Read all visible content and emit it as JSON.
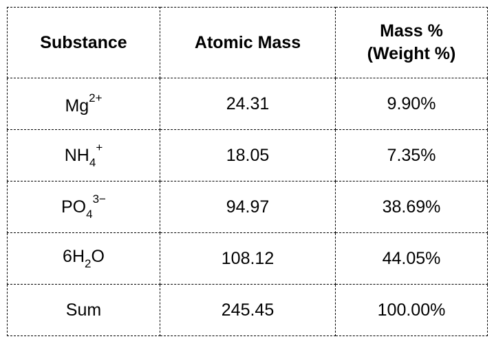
{
  "table": {
    "header": [
      [
        "Substance"
      ],
      [
        "Atomic Mass"
      ],
      [
        "Mass %",
        "(Weight %)"
      ]
    ],
    "rows": [
      {
        "substance": [
          {
            "text": "Mg"
          },
          {
            "text": "2+",
            "pos": "sup"
          }
        ],
        "mass": "24.31",
        "percent": "9.90%"
      },
      {
        "substance": [
          {
            "text": "NH"
          },
          {
            "text": "4",
            "pos": "sub"
          },
          {
            "text": "+",
            "pos": "sup"
          }
        ],
        "mass": "18.05",
        "percent": "7.35%"
      },
      {
        "substance": [
          {
            "text": "PO"
          },
          {
            "text": "4",
            "pos": "sub"
          },
          {
            "text": "3−",
            "pos": "sup"
          }
        ],
        "mass": "94.97",
        "percent": "38.69%"
      },
      {
        "substance": [
          {
            "text": "6H"
          },
          {
            "text": "2",
            "pos": "sub"
          },
          {
            "text": "O"
          }
        ],
        "mass": "108.12",
        "percent": "44.05%"
      },
      {
        "substance": [
          {
            "text": "Sum"
          }
        ],
        "mass": "245.45",
        "percent": "100.00%"
      }
    ]
  }
}
